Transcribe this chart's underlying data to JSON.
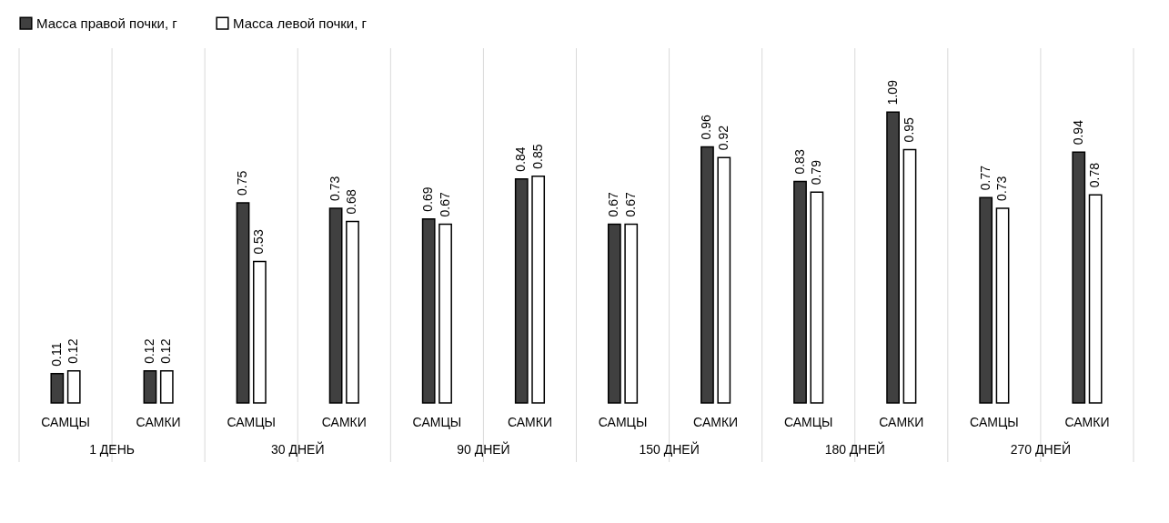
{
  "chart_data": {
    "type": "bar",
    "categories": [
      "САМЦЫ",
      "САМКИ",
      "САМЦЫ",
      "САМКИ",
      "САМЦЫ",
      "САМКИ",
      "САМЦЫ",
      "САМКИ",
      "САМЦЫ",
      "САМКИ",
      "САМЦЫ",
      "САМКИ"
    ],
    "series": [
      {
        "name": "Масса правой почки, г",
        "color": "#404040",
        "values": [
          0.11,
          0.12,
          0.75,
          0.73,
          0.69,
          0.84,
          0.67,
          0.96,
          0.83,
          1.09,
          0.77,
          0.94
        ]
      },
      {
        "name": "Масса левой почки, г",
        "color": "#ffffff",
        "values": [
          0.12,
          0.12,
          0.53,
          0.68,
          0.67,
          0.85,
          0.67,
          0.92,
          0.79,
          0.95,
          0.73,
          0.78
        ]
      }
    ],
    "annotations": [
      "1 ДЕНЬ",
      "30 ДНЕЙ",
      "90 ДНЕЙ",
      "150 ДНЕЙ",
      "180 ДНЕЙ",
      "270 ДНЕЙ"
    ],
    "data_labels": true,
    "grid": "x",
    "legend": "top"
  }
}
